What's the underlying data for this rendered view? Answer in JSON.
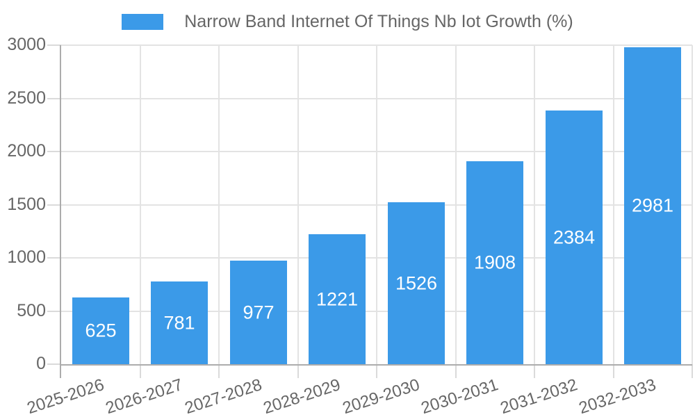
{
  "legend": {
    "label": "Narrow Band Internet Of Things Nb Iot Growth (%)"
  },
  "chart_data": {
    "type": "bar",
    "title": "",
    "xlabel": "",
    "ylabel": "",
    "categories": [
      "2025-2026",
      "2026-2027",
      "2027-2028",
      "2028-2029",
      "2029-2030",
      "2030-2031",
      "2031-2032",
      "2032-2033"
    ],
    "series": [
      {
        "name": "Narrow Band Internet Of Things Nb Iot Growth (%)",
        "values": [
          625,
          781,
          977,
          1221,
          1526,
          1908,
          2384,
          2981
        ]
      }
    ],
    "value_labels_shown": true,
    "ylim": [
      0,
      3000
    ],
    "yticks": [
      0,
      500,
      1000,
      1500,
      2000,
      2500,
      3000
    ],
    "grid": true,
    "legend_position": "top"
  },
  "colors": {
    "bar": "#3b9ae8",
    "grid": "#e3e3e3",
    "tick": "#dadada",
    "axis": "#acacac",
    "tick_text": "#666666",
    "legend_text": "#666666",
    "value_label_text": "#ffffff",
    "background": "#ffffff"
  }
}
